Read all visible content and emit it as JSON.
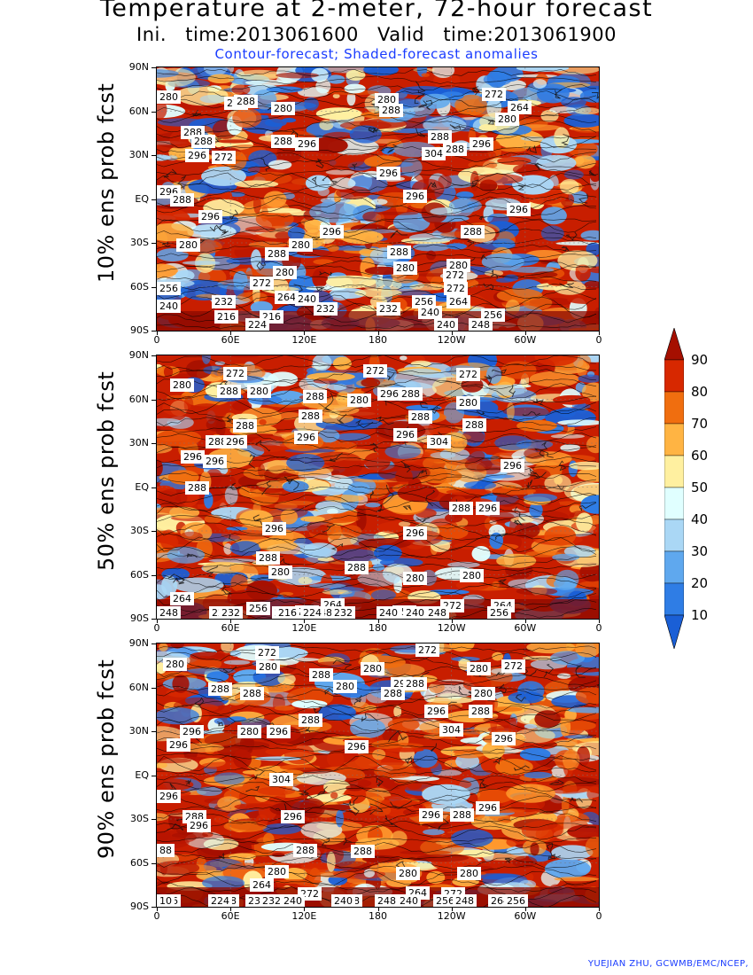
{
  "title": "Temperature at 2-meter, 72-hour forecast",
  "subtitle": "Ini. time:2013061600    Valid time:2013061900",
  "description": "Contour-forecast; Shaded-forecast anomalies",
  "credit": "YUEJIAN ZHU, GCWMB/EMC/NCEP,",
  "lat_labels": [
    "90N",
    "60N",
    "30N",
    "EQ",
    "30S",
    "60S",
    "90S"
  ],
  "lon_labels": [
    "0",
    "60E",
    "120E",
    "180",
    "120W",
    "60W",
    "0"
  ],
  "colorbar": {
    "labels": [
      "90",
      "80",
      "70",
      "60",
      "50",
      "40",
      "30",
      "20",
      "10"
    ],
    "colors": [
      "#a50f00",
      "#d72800",
      "#f06e0f",
      "#ffb443",
      "#fff0a0",
      "#e0ffff",
      "#aad7f5",
      "#5fa8ee",
      "#2f7de5",
      "#1a5fd6"
    ]
  },
  "panels": [
    {
      "label": "10% ens prob fcst",
      "warm_fraction": 0.45,
      "contour_labels": [
        {
          "text": "280",
          "lon": 5,
          "lat": 70
        },
        {
          "text": "272",
          "lon": 62,
          "lat": 66
        },
        {
          "text": "288",
          "lon": 70,
          "lat": 67
        },
        {
          "text": "280",
          "lon": 100,
          "lat": 62
        },
        {
          "text": "280",
          "lon": 185,
          "lat": 68
        },
        {
          "text": "288",
          "lon": 188,
          "lat": 61
        },
        {
          "text": "272",
          "lon": 272,
          "lat": 72
        },
        {
          "text": "264",
          "lon": 293,
          "lat": 63
        },
        {
          "text": "280",
          "lon": 283,
          "lat": 55
        },
        {
          "text": "288",
          "lon": 27,
          "lat": 46
        },
        {
          "text": "288",
          "lon": 35,
          "lat": 40
        },
        {
          "text": "296",
          "lon": 120,
          "lat": 38
        },
        {
          "text": "288",
          "lon": 100,
          "lat": 40
        },
        {
          "text": "288",
          "lon": 228,
          "lat": 43
        },
        {
          "text": "296",
          "lon": 262,
          "lat": 38
        },
        {
          "text": "288",
          "lon": 240,
          "lat": 34
        },
        {
          "text": "296",
          "lon": 30,
          "lat": 30
        },
        {
          "text": "272",
          "lon": 52,
          "lat": 29
        },
        {
          "text": "304",
          "lon": 223,
          "lat": 31
        },
        {
          "text": "296",
          "lon": 186,
          "lat": 18
        },
        {
          "text": "296",
          "lon": 2,
          "lat": 5
        },
        {
          "text": "288",
          "lon": 18,
          "lat": 0
        },
        {
          "text": "296",
          "lon": 208,
          "lat": 2
        },
        {
          "text": "296",
          "lon": 41,
          "lat": -12
        },
        {
          "text": "296",
          "lon": 292,
          "lat": -7
        },
        {
          "text": "296",
          "lon": 140,
          "lat": -22
        },
        {
          "text": "288",
          "lon": 255,
          "lat": -22
        },
        {
          "text": "280",
          "lon": 23,
          "lat": -31
        },
        {
          "text": "280",
          "lon": 115,
          "lat": -31
        },
        {
          "text": "288",
          "lon": 95,
          "lat": -37
        },
        {
          "text": "288",
          "lon": 195,
          "lat": -36
        },
        {
          "text": "280",
          "lon": 200,
          "lat": -47
        },
        {
          "text": "280",
          "lon": 243,
          "lat": -45
        },
        {
          "text": "272",
          "lon": 240,
          "lat": -52
        },
        {
          "text": "280",
          "lon": 102,
          "lat": -50
        },
        {
          "text": "272",
          "lon": 83,
          "lat": -57
        },
        {
          "text": "272",
          "lon": 241,
          "lat": -61
        },
        {
          "text": "256",
          "lon": 3,
          "lat": -61
        },
        {
          "text": "264",
          "lon": 103,
          "lat": -67
        },
        {
          "text": "240",
          "lon": 120,
          "lat": -68
        },
        {
          "text": "232",
          "lon": 52,
          "lat": -70
        },
        {
          "text": "256",
          "lon": 215,
          "lat": -70
        },
        {
          "text": "264",
          "lon": 243,
          "lat": -70
        },
        {
          "text": "240",
          "lon": 1,
          "lat": -73
        },
        {
          "text": "232",
          "lon": 135,
          "lat": -75
        },
        {
          "text": "232",
          "lon": 186,
          "lat": -75
        },
        {
          "text": "240",
          "lon": 220,
          "lat": -77
        },
        {
          "text": "216",
          "lon": 54,
          "lat": -80
        },
        {
          "text": "216",
          "lon": 91,
          "lat": -80
        },
        {
          "text": "256",
          "lon": 271,
          "lat": -79
        },
        {
          "text": "224",
          "lon": 79,
          "lat": -87
        },
        {
          "text": "240",
          "lon": 233,
          "lat": -87
        },
        {
          "text": "248",
          "lon": 261,
          "lat": -86
        }
      ]
    },
    {
      "label": "50% ens prob fcst",
      "warm_fraction": 0.62,
      "contour_labels": [
        {
          "text": "272",
          "lon": 61,
          "lat": 78
        },
        {
          "text": "272",
          "lon": 175,
          "lat": 80
        },
        {
          "text": "272",
          "lon": 251,
          "lat": 77
        },
        {
          "text": "280",
          "lon": 18,
          "lat": 70
        },
        {
          "text": "288",
          "lon": 56,
          "lat": 66
        },
        {
          "text": "280",
          "lon": 81,
          "lat": 66
        },
        {
          "text": "288",
          "lon": 126,
          "lat": 62
        },
        {
          "text": "280",
          "lon": 162,
          "lat": 60
        },
        {
          "text": "296",
          "lon": 187,
          "lat": 64
        },
        {
          "text": "288",
          "lon": 204,
          "lat": 64
        },
        {
          "text": "280",
          "lon": 251,
          "lat": 58
        },
        {
          "text": "288",
          "lon": 123,
          "lat": 49
        },
        {
          "text": "288",
          "lon": 212,
          "lat": 48
        },
        {
          "text": "288",
          "lon": 256,
          "lat": 43
        },
        {
          "text": "288",
          "lon": 69,
          "lat": 42
        },
        {
          "text": "288",
          "lon": 47,
          "lat": 31
        },
        {
          "text": "296",
          "lon": 61,
          "lat": 31
        },
        {
          "text": "296",
          "lon": 119,
          "lat": 34
        },
        {
          "text": "296",
          "lon": 200,
          "lat": 36
        },
        {
          "text": "304",
          "lon": 227,
          "lat": 31
        },
        {
          "text": "296",
          "lon": 27,
          "lat": 21
        },
        {
          "text": "296",
          "lon": 45,
          "lat": 18
        },
        {
          "text": "296",
          "lon": 287,
          "lat": 15
        },
        {
          "text": "288",
          "lon": 30,
          "lat": 0
        },
        {
          "text": "288",
          "lon": 245,
          "lat": -14
        },
        {
          "text": "296",
          "lon": 267,
          "lat": -14
        },
        {
          "text": "296",
          "lon": 93,
          "lat": -28
        },
        {
          "text": "296",
          "lon": 208,
          "lat": -31
        },
        {
          "text": "288",
          "lon": 88,
          "lat": -48
        },
        {
          "text": "280",
          "lon": 98,
          "lat": -58
        },
        {
          "text": "288",
          "lon": 160,
          "lat": -55
        },
        {
          "text": "280",
          "lon": 208,
          "lat": -62
        },
        {
          "text": "280",
          "lon": 254,
          "lat": -60
        },
        {
          "text": "264",
          "lon": 18,
          "lat": -76
        },
        {
          "text": "256",
          "lon": 80,
          "lat": -83
        },
        {
          "text": "248",
          "lon": 5,
          "lat": -90
        },
        {
          "text": "264",
          "lon": 141,
          "lat": -80
        },
        {
          "text": "272",
          "lon": 120,
          "lat": -85
        },
        {
          "text": "248",
          "lon": 133,
          "lat": -87
        },
        {
          "text": "256",
          "lon": 199,
          "lat": -85
        },
        {
          "text": "272",
          "lon": 238,
          "lat": -81
        },
        {
          "text": "264",
          "lon": 279,
          "lat": -81
        },
        {
          "text": "224",
          "lon": 50,
          "lat": -88
        },
        {
          "text": "240",
          "lon": 101,
          "lat": -90
        },
        {
          "text": "232",
          "lon": 58,
          "lat": -95
        },
        {
          "text": "240",
          "lon": 186,
          "lat": -95
        },
        {
          "text": "232",
          "lon": 210,
          "lat": -95
        },
        {
          "text": "248",
          "lon": 226,
          "lat": -95
        },
        {
          "text": "216",
          "lon": 104,
          "lat": -98
        },
        {
          "text": "224",
          "lon": 124,
          "lat": -98
        },
        {
          "text": "232",
          "lon": 149,
          "lat": -102
        },
        {
          "text": "240",
          "lon": 208,
          "lat": -107
        },
        {
          "text": "256",
          "lon": 276,
          "lat": -103
        }
      ]
    },
    {
      "label": "90% ens prob fcst",
      "warm_fraction": 0.72,
      "contour_labels": [
        {
          "text": "272",
          "lon": 87,
          "lat": 84
        },
        {
          "text": "272",
          "lon": 218,
          "lat": 86
        },
        {
          "text": "280",
          "lon": 12,
          "lat": 76
        },
        {
          "text": "280",
          "lon": 88,
          "lat": 74
        },
        {
          "text": "288",
          "lon": 131,
          "lat": 69
        },
        {
          "text": "280",
          "lon": 173,
          "lat": 73
        },
        {
          "text": "296",
          "lon": 198,
          "lat": 63
        },
        {
          "text": "288",
          "lon": 208,
          "lat": 63
        },
        {
          "text": "280",
          "lon": 260,
          "lat": 73
        },
        {
          "text": "272",
          "lon": 288,
          "lat": 75
        },
        {
          "text": "288",
          "lon": 49,
          "lat": 59
        },
        {
          "text": "280",
          "lon": 151,
          "lat": 61
        },
        {
          "text": "288",
          "lon": 190,
          "lat": 56
        },
        {
          "text": "280",
          "lon": 263,
          "lat": 56
        },
        {
          "text": "288",
          "lon": 75,
          "lat": 56
        },
        {
          "text": "296",
          "lon": 225,
          "lat": 44
        },
        {
          "text": "288",
          "lon": 261,
          "lat": 44
        },
        {
          "text": "288",
          "lon": 123,
          "lat": 38
        },
        {
          "text": "296",
          "lon": 26,
          "lat": 30
        },
        {
          "text": "280",
          "lon": 73,
          "lat": 30
        },
        {
          "text": "296",
          "lon": 97,
          "lat": 30
        },
        {
          "text": "304",
          "lon": 237,
          "lat": 31
        },
        {
          "text": "296",
          "lon": 280,
          "lat": 25
        },
        {
          "text": "296",
          "lon": 15,
          "lat": 21
        },
        {
          "text": "296",
          "lon": 160,
          "lat": 20
        },
        {
          "text": "304",
          "lon": 99,
          "lat": -3
        },
        {
          "text": "296",
          "lon": 3,
          "lat": -14
        },
        {
          "text": "288",
          "lon": 28,
          "lat": -28
        },
        {
          "text": "296",
          "lon": 32,
          "lat": -34
        },
        {
          "text": "296",
          "lon": 108,
          "lat": -28
        },
        {
          "text": "296",
          "lon": 221,
          "lat": -27
        },
        {
          "text": "288",
          "lon": 246,
          "lat": -27
        },
        {
          "text": "296",
          "lon": 267,
          "lat": -22
        },
        {
          "text": "288",
          "lon": 118,
          "lat": -51
        },
        {
          "text": "288",
          "lon": 165,
          "lat": -52
        },
        {
          "text": "88",
          "lon": 2,
          "lat": -51
        },
        {
          "text": "280",
          "lon": 95,
          "lat": -66
        },
        {
          "text": "280",
          "lon": 202,
          "lat": -67
        },
        {
          "text": "280",
          "lon": 252,
          "lat": -67
        },
        {
          "text": "264",
          "lon": 83,
          "lat": -75
        },
        {
          "text": "272",
          "lon": 122,
          "lat": -81
        },
        {
          "text": "272",
          "lon": 239,
          "lat": -81
        },
        {
          "text": "264",
          "lon": 210,
          "lat": -80
        },
        {
          "text": "256",
          "lon": 5,
          "lat": -86
        },
        {
          "text": "248",
          "lon": 55,
          "lat": -87
        },
        {
          "text": "232",
          "lon": 79,
          "lat": -87
        },
        {
          "text": "248",
          "lon": 155,
          "lat": -92
        },
        {
          "text": "240",
          "lon": 203,
          "lat": -93
        },
        {
          "text": "256",
          "lon": 232,
          "lat": -86
        },
        {
          "text": "10",
          "lon": 1,
          "lat": -93
        },
        {
          "text": "224",
          "lon": 49,
          "lat": -101
        },
        {
          "text": "232",
          "lon": 91,
          "lat": -105
        },
        {
          "text": "240",
          "lon": 149,
          "lat": -102
        },
        {
          "text": "248",
          "lon": 185,
          "lat": -102
        },
        {
          "text": "248",
          "lon": 248,
          "lat": -105
        },
        {
          "text": "264",
          "lon": 277,
          "lat": -99
        },
        {
          "text": "256",
          "lon": 290,
          "lat": -99
        },
        {
          "text": "240",
          "lon": 108,
          "lat": -108
        }
      ]
    }
  ]
}
